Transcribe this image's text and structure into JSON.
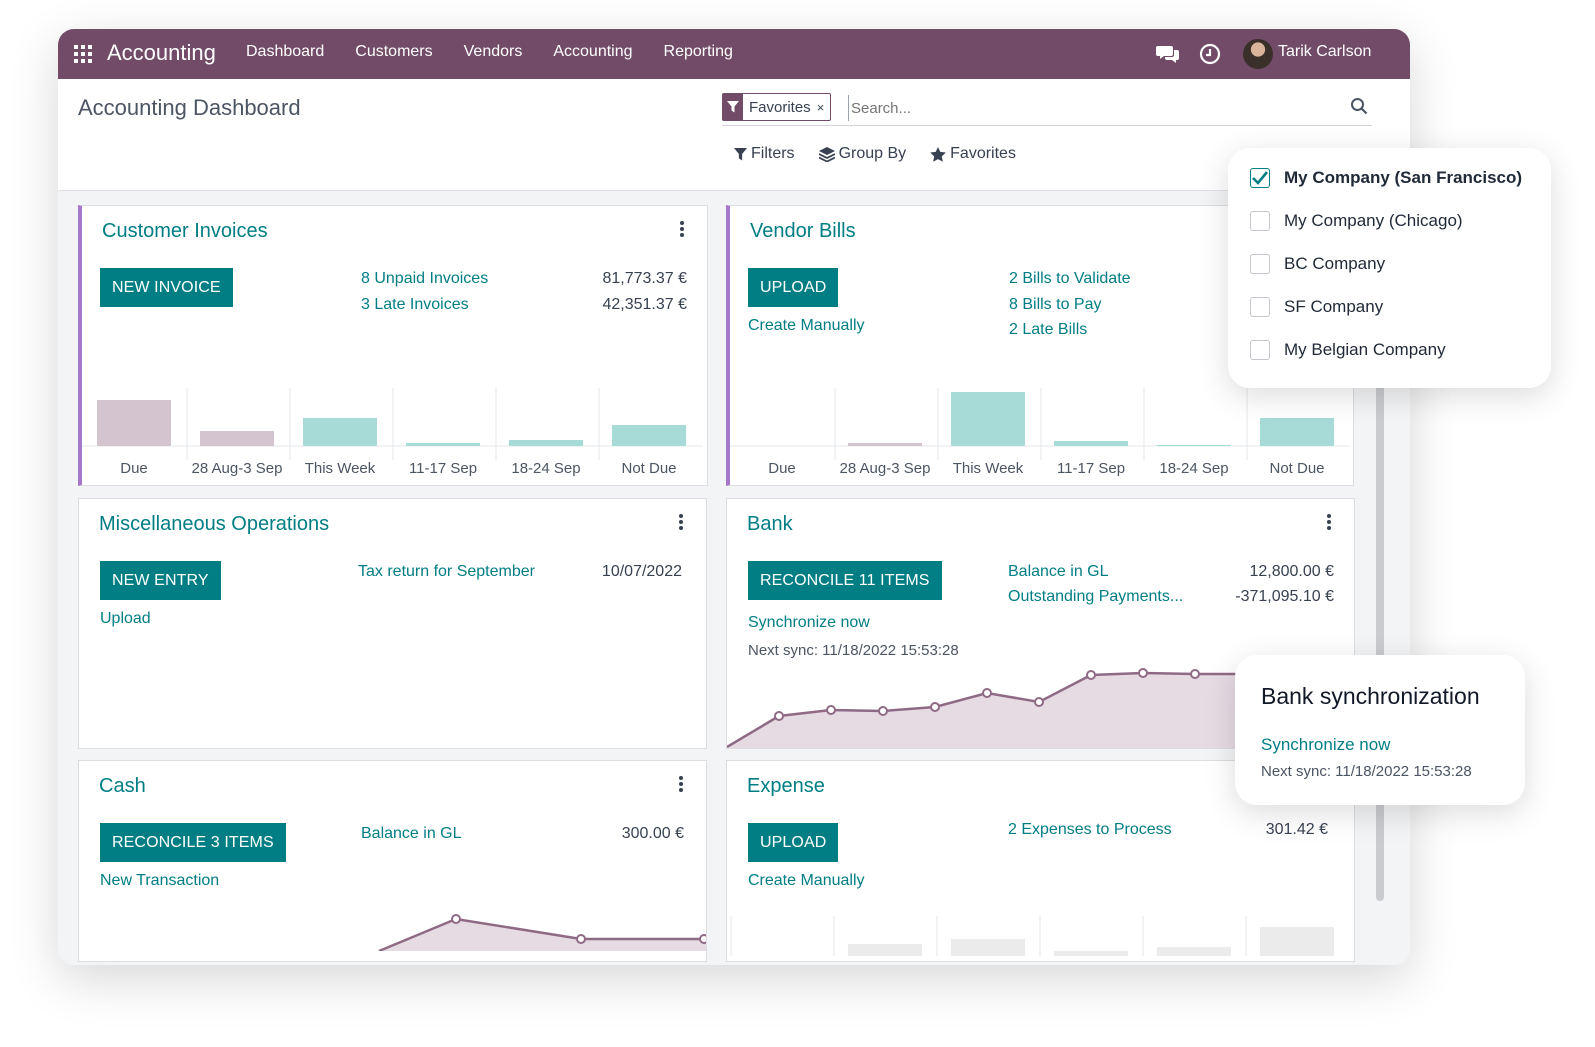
{
  "navbar": {
    "app_name": "Accounting",
    "menu": [
      "Dashboard",
      "Customers",
      "Vendors",
      "Accounting",
      "Reporting"
    ],
    "user_name": "Tarik Carlson"
  },
  "control_panel": {
    "title": "Accounting Dashboard",
    "facet_label": "Favorites",
    "facet_remove": "×",
    "search_placeholder": "Search...",
    "filters_label": "Filters",
    "group_by_label": "Group By",
    "favorites_label": "Favorites"
  },
  "cards": {
    "customer_invoices": {
      "title": "Customer Invoices",
      "button": "NEW INVOICE",
      "links": [
        {
          "label": "8 Unpaid Invoices",
          "amount": "81,773.37 €"
        },
        {
          "label": "3 Late Invoices",
          "amount": "42,351.37 €"
        }
      ],
      "chart": {
        "categories": [
          "Due",
          "28 Aug-3 Sep",
          "This Week",
          "11-17 Sep",
          "18-24 Sep",
          "Not Due"
        ]
      }
    },
    "vendor_bills": {
      "title": "Vendor Bills",
      "button": "UPLOAD",
      "secondary": "Create Manually",
      "links": [
        "2 Bills to Validate",
        "8 Bills to Pay",
        "2 Late Bills"
      ],
      "chart": {
        "categories": [
          "Due",
          "28 Aug-3 Sep",
          "This Week",
          "11-17 Sep",
          "18-24 Sep",
          "Not Due"
        ]
      }
    },
    "misc": {
      "title": "Miscellaneous Operations",
      "button": "NEW ENTRY",
      "secondary": "Upload",
      "link": "Tax return for September",
      "date": "10/07/2022"
    },
    "bank": {
      "title": "Bank",
      "button": "RECONCILE 11 ITEMS",
      "sync_link": "Synchronize now",
      "next_sync": "Next sync: 11/18/2022 15:53:28",
      "links": [
        {
          "label": "Balance in GL",
          "amount": "12,800.00 €"
        },
        {
          "label": "Outstanding Payments...",
          "amount": "-371,095.10 €"
        }
      ]
    },
    "cash": {
      "title": "Cash",
      "button": "RECONCILE 3 ITEMS",
      "secondary": "New Transaction",
      "link": "Balance in GL",
      "amount": "300.00 €"
    },
    "expense": {
      "title": "Expense",
      "button": "UPLOAD",
      "secondary": "Create Manually",
      "link": "2 Expenses to Process",
      "amount": "301.42 €"
    }
  },
  "company_switcher": {
    "companies": [
      {
        "name": "My Company (San Francisco)",
        "checked": true
      },
      {
        "name": "My Company (Chicago)",
        "checked": false
      },
      {
        "name": "BC Company",
        "checked": false
      },
      {
        "name": "SF Company",
        "checked": false
      },
      {
        "name": "My Belgian Company",
        "checked": false
      }
    ]
  },
  "bank_sync_popover": {
    "title": "Bank synchronization",
    "link": "Synchronize now",
    "next_sync": "Next sync: 11/18/2022 15:53:28"
  },
  "colors": {
    "brand": "#714b67",
    "accent": "#017e84",
    "bar_past": "#d4c4d0",
    "bar_future": "#a6dbd8"
  }
}
